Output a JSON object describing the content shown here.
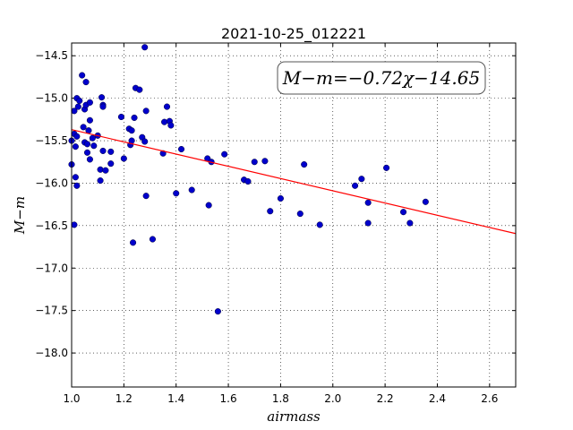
{
  "chart_data": {
    "type": "scatter",
    "title": "2021-10-25_012221",
    "xlabel": "airmass",
    "ylabel": "M−m",
    "xlim": [
      1.0,
      2.7
    ],
    "ylim": [
      -18.4,
      -14.35
    ],
    "y_inverted": true,
    "grid": true,
    "xticks": [
      1.0,
      1.2,
      1.4,
      1.6,
      1.8,
      2.0,
      2.2,
      2.4,
      2.6
    ],
    "xtick_labels": [
      "1.0",
      "1.2",
      "1.4",
      "1.6",
      "1.8",
      "2.0",
      "2.2",
      "2.4",
      "2.6"
    ],
    "yticks": [
      -14.5,
      -15.0,
      -15.5,
      -16.0,
      -16.5,
      -17.0,
      -17.5,
      -18.0
    ],
    "ytick_labels": [
      "−14.5",
      "−15.0",
      "−15.5",
      "−16.0",
      "−16.5",
      "−17.0",
      "−17.5",
      "−18.0"
    ],
    "annotation": "M−m=−0.72χ−14.65",
    "fit": {
      "slope": -0.72,
      "intercept": -14.65,
      "x_range": [
        1.0,
        2.7
      ],
      "color": "#ff0000"
    },
    "point_color": "#0000cc",
    "points": [
      [
        1.0,
        -15.5
      ],
      [
        1.0,
        -15.78
      ],
      [
        1.01,
        -15.15
      ],
      [
        1.01,
        -15.42
      ],
      [
        1.01,
        -16.49
      ],
      [
        1.015,
        -15.93
      ],
      [
        1.015,
        -15.57
      ],
      [
        1.02,
        -15.0
      ],
      [
        1.02,
        -15.45
      ],
      [
        1.02,
        -16.03
      ],
      [
        1.025,
        -15.1
      ],
      [
        1.03,
        -15.03
      ],
      [
        1.04,
        -14.73
      ],
      [
        1.045,
        -15.34
      ],
      [
        1.05,
        -15.52
      ],
      [
        1.05,
        -15.13
      ],
      [
        1.055,
        -15.08
      ],
      [
        1.055,
        -14.81
      ],
      [
        1.06,
        -15.54
      ],
      [
        1.06,
        -15.64
      ],
      [
        1.065,
        -15.38
      ],
      [
        1.07,
        -15.05
      ],
      [
        1.07,
        -15.26
      ],
      [
        1.07,
        -15.72
      ],
      [
        1.08,
        -15.47
      ],
      [
        1.085,
        -15.56
      ],
      [
        1.1,
        -15.44
      ],
      [
        1.11,
        -15.84
      ],
      [
        1.11,
        -15.97
      ],
      [
        1.115,
        -14.99
      ],
      [
        1.12,
        -15.08
      ],
      [
        1.12,
        -15.1
      ],
      [
        1.12,
        -15.62
      ],
      [
        1.13,
        -15.85
      ],
      [
        1.15,
        -15.77
      ],
      [
        1.15,
        -15.63
      ],
      [
        1.19,
        -15.22
      ],
      [
        1.2,
        -15.71
      ],
      [
        1.22,
        -15.36
      ],
      [
        1.225,
        -15.55
      ],
      [
        1.23,
        -15.38
      ],
      [
        1.23,
        -15.5
      ],
      [
        1.235,
        -16.7
      ],
      [
        1.24,
        -15.23
      ],
      [
        1.245,
        -14.88
      ],
      [
        1.26,
        -14.9
      ],
      [
        1.27,
        -15.46
      ],
      [
        1.28,
        -15.51
      ],
      [
        1.28,
        -14.4
      ],
      [
        1.285,
        -15.15
      ],
      [
        1.285,
        -16.15
      ],
      [
        1.31,
        -16.66
      ],
      [
        1.35,
        -15.65
      ],
      [
        1.355,
        -15.28
      ],
      [
        1.365,
        -15.1
      ],
      [
        1.375,
        -15.27
      ],
      [
        1.38,
        -15.32
      ],
      [
        1.4,
        -16.12
      ],
      [
        1.42,
        -15.6
      ],
      [
        1.46,
        -16.08
      ],
      [
        1.52,
        -15.71
      ],
      [
        1.525,
        -16.26
      ],
      [
        1.535,
        -15.75
      ],
      [
        1.56,
        -17.51
      ],
      [
        1.585,
        -15.66
      ],
      [
        1.66,
        -15.96
      ],
      [
        1.675,
        -15.98
      ],
      [
        1.7,
        -15.75
      ],
      [
        1.74,
        -15.74
      ],
      [
        1.76,
        -16.33
      ],
      [
        1.8,
        -16.18
      ],
      [
        1.875,
        -16.36
      ],
      [
        1.89,
        -15.78
      ],
      [
        1.95,
        -16.49
      ],
      [
        2.085,
        -16.03
      ],
      [
        2.11,
        -15.95
      ],
      [
        2.135,
        -16.47
      ],
      [
        2.135,
        -16.23
      ],
      [
        2.205,
        -15.82
      ],
      [
        2.27,
        -16.34
      ],
      [
        2.295,
        -16.47
      ],
      [
        2.355,
        -16.22
      ]
    ]
  }
}
